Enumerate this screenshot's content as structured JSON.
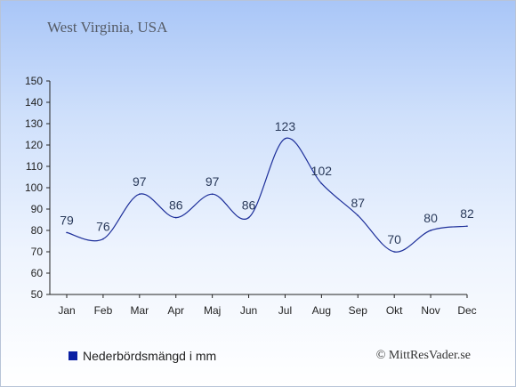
{
  "chart_data": {
    "type": "line",
    "title": "West Virginia, USA",
    "categories": [
      "Jan",
      "Feb",
      "Mar",
      "Apr",
      "Maj",
      "Jun",
      "Jul",
      "Aug",
      "Sep",
      "Okt",
      "Nov",
      "Dec"
    ],
    "series": [
      {
        "name": "Nederbördsmängd i mm",
        "values": [
          79,
          76,
          97,
          86,
          97,
          86,
          123,
          102,
          87,
          70,
          80,
          82
        ]
      }
    ],
    "ylim": [
      50,
      150
    ],
    "yticks": [
      50,
      60,
      70,
      80,
      90,
      100,
      110,
      120,
      130,
      140,
      150
    ],
    "grid": false,
    "legend_position": "bottom-left",
    "line_color": "#1d2f9a"
  },
  "legend": {
    "label": "Nederbördsmängd i mm",
    "swatch_color": "#0a1fa3"
  },
  "footer": {
    "copyright": "© MittResVader.se"
  }
}
